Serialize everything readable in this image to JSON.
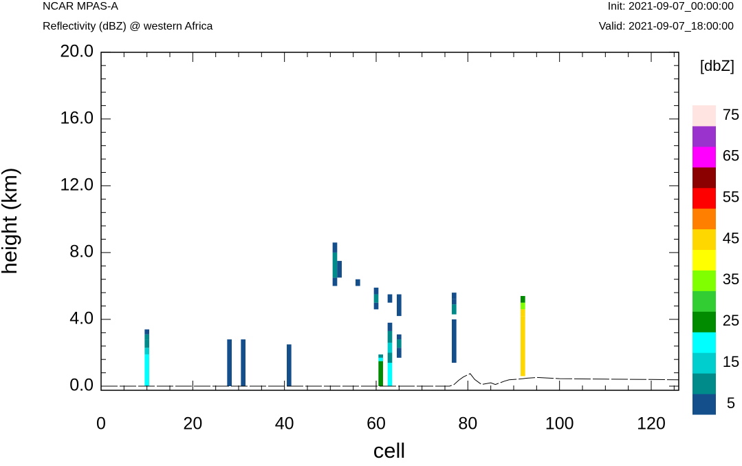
{
  "header": {
    "left_title": "NCAR MPAS-A",
    "left_subtitle": "Reflectivity (dBZ) @ western Africa",
    "right_title": "Init: 2021-09-07_00:00:00",
    "right_subtitle": "Valid: 2021-09-07_18:00:00"
  },
  "chart_data": {
    "type": "heatmap",
    "xlabel": "cell",
    "ylabel": "height (km)",
    "xlim": [
      0,
      126
    ],
    "ylim": [
      -0.3,
      20.0
    ],
    "x_ticks": [
      0,
      20,
      40,
      60,
      80,
      100,
      120
    ],
    "y_ticks": [
      "0.0",
      "4.0",
      "8.0",
      "12.0",
      "16.0",
      "20.0"
    ],
    "colorbar": {
      "unit_label": "[dbZ]",
      "tick_labels": [
        "5",
        "15",
        "25",
        "35",
        "45",
        "55",
        "65",
        "75"
      ],
      "colors": [
        "#144f8c",
        "#008b8b",
        "#00cdcd",
        "#00ffff",
        "#008b00",
        "#32cd32",
        "#7fff00",
        "#ffff00",
        "#ffd700",
        "#ff7f00",
        "#ff0000",
        "#8b0000",
        "#ff00ff",
        "#9a32cd",
        "#ffe4e1"
      ]
    },
    "cells": [
      {
        "x": 10,
        "y0": 0.0,
        "y1": 1.9,
        "color": "#00ffff"
      },
      {
        "x": 10,
        "y0": 1.9,
        "y1": 2.3,
        "color": "#00cdcd"
      },
      {
        "x": 10,
        "y0": 2.3,
        "y1": 2.8,
        "color": "#008b8b"
      },
      {
        "x": 10,
        "y0": 2.8,
        "y1": 3.1,
        "color": "#008b8b"
      },
      {
        "x": 10,
        "y0": 3.1,
        "y1": 3.4,
        "color": "#144f8c"
      },
      {
        "x": 28,
        "y0": 0.0,
        "y1": 2.8,
        "color": "#144f8c"
      },
      {
        "x": 31,
        "y0": 0.0,
        "y1": 2.8,
        "color": "#144f8c"
      },
      {
        "x": 41,
        "y0": 0.0,
        "y1": 2.5,
        "color": "#144f8c"
      },
      {
        "x": 51,
        "y0": 6.0,
        "y1": 6.5,
        "color": "#144f8c"
      },
      {
        "x": 51,
        "y0": 6.5,
        "y1": 8.0,
        "color": "#008b8b"
      },
      {
        "x": 51,
        "y0": 8.0,
        "y1": 8.6,
        "color": "#144f8c"
      },
      {
        "x": 52,
        "y0": 6.5,
        "y1": 7.5,
        "color": "#144f8c"
      },
      {
        "x": 56,
        "y0": 6.0,
        "y1": 6.4,
        "color": "#144f8c"
      },
      {
        "x": 60,
        "y0": 4.6,
        "y1": 5.0,
        "color": "#144f8c"
      },
      {
        "x": 60,
        "y0": 5.0,
        "y1": 5.5,
        "color": "#008b8b"
      },
      {
        "x": 60,
        "y0": 5.5,
        "y1": 5.9,
        "color": "#144f8c"
      },
      {
        "x": 61,
        "y0": 0.0,
        "y1": 1.5,
        "color": "#008b00"
      },
      {
        "x": 61,
        "y0": 1.5,
        "y1": 1.7,
        "color": "#00ffff"
      },
      {
        "x": 61,
        "y0": 1.7,
        "y1": 1.9,
        "color": "#008b8b"
      },
      {
        "x": 63,
        "y0": 0.0,
        "y1": 1.4,
        "color": "#00ffff"
      },
      {
        "x": 63,
        "y0": 1.4,
        "y1": 2.0,
        "color": "#008b8b"
      },
      {
        "x": 63,
        "y0": 2.0,
        "y1": 2.6,
        "color": "#00cdcd"
      },
      {
        "x": 63,
        "y0": 2.6,
        "y1": 3.3,
        "color": "#008b8b"
      },
      {
        "x": 63,
        "y0": 3.3,
        "y1": 3.8,
        "color": "#144f8c"
      },
      {
        "x": 63,
        "y0": 5.0,
        "y1": 5.5,
        "color": "#144f8c"
      },
      {
        "x": 65,
        "y0": 1.7,
        "y1": 2.3,
        "color": "#144f8c"
      },
      {
        "x": 65,
        "y0": 2.3,
        "y1": 2.8,
        "color": "#008b8b"
      },
      {
        "x": 65,
        "y0": 2.8,
        "y1": 3.1,
        "color": "#144f8c"
      },
      {
        "x": 65,
        "y0": 4.2,
        "y1": 5.5,
        "color": "#144f8c"
      },
      {
        "x": 77,
        "y0": 1.4,
        "y1": 4.0,
        "color": "#144f8c"
      },
      {
        "x": 77,
        "y0": 4.3,
        "y1": 4.9,
        "color": "#008b8b"
      },
      {
        "x": 77,
        "y0": 4.9,
        "y1": 5.2,
        "color": "#144f8c"
      },
      {
        "x": 77,
        "y0": 5.2,
        "y1": 5.6,
        "color": "#144f8c"
      },
      {
        "x": 92,
        "y0": 0.6,
        "y1": 4.2,
        "color": "#ffd700"
      },
      {
        "x": 92,
        "y0": 4.2,
        "y1": 4.6,
        "color": "#ffd700"
      },
      {
        "x": 92,
        "y0": 4.6,
        "y1": 5.0,
        "color": "#7fff00"
      },
      {
        "x": 92,
        "y0": 5.0,
        "y1": 5.4,
        "color": "#008b00"
      }
    ],
    "terrain": {
      "x": [
        0,
        76,
        77,
        78,
        79,
        80.5,
        81.5,
        83,
        85,
        86,
        88,
        89,
        91,
        93,
        95,
        100,
        110,
        120,
        126
      ],
      "y": [
        0.0,
        0.0,
        0.1,
        0.35,
        0.55,
        0.75,
        0.4,
        0.1,
        0.2,
        0.1,
        0.3,
        0.38,
        0.42,
        0.48,
        0.52,
        0.45,
        0.42,
        0.4,
        0.38
      ]
    }
  }
}
